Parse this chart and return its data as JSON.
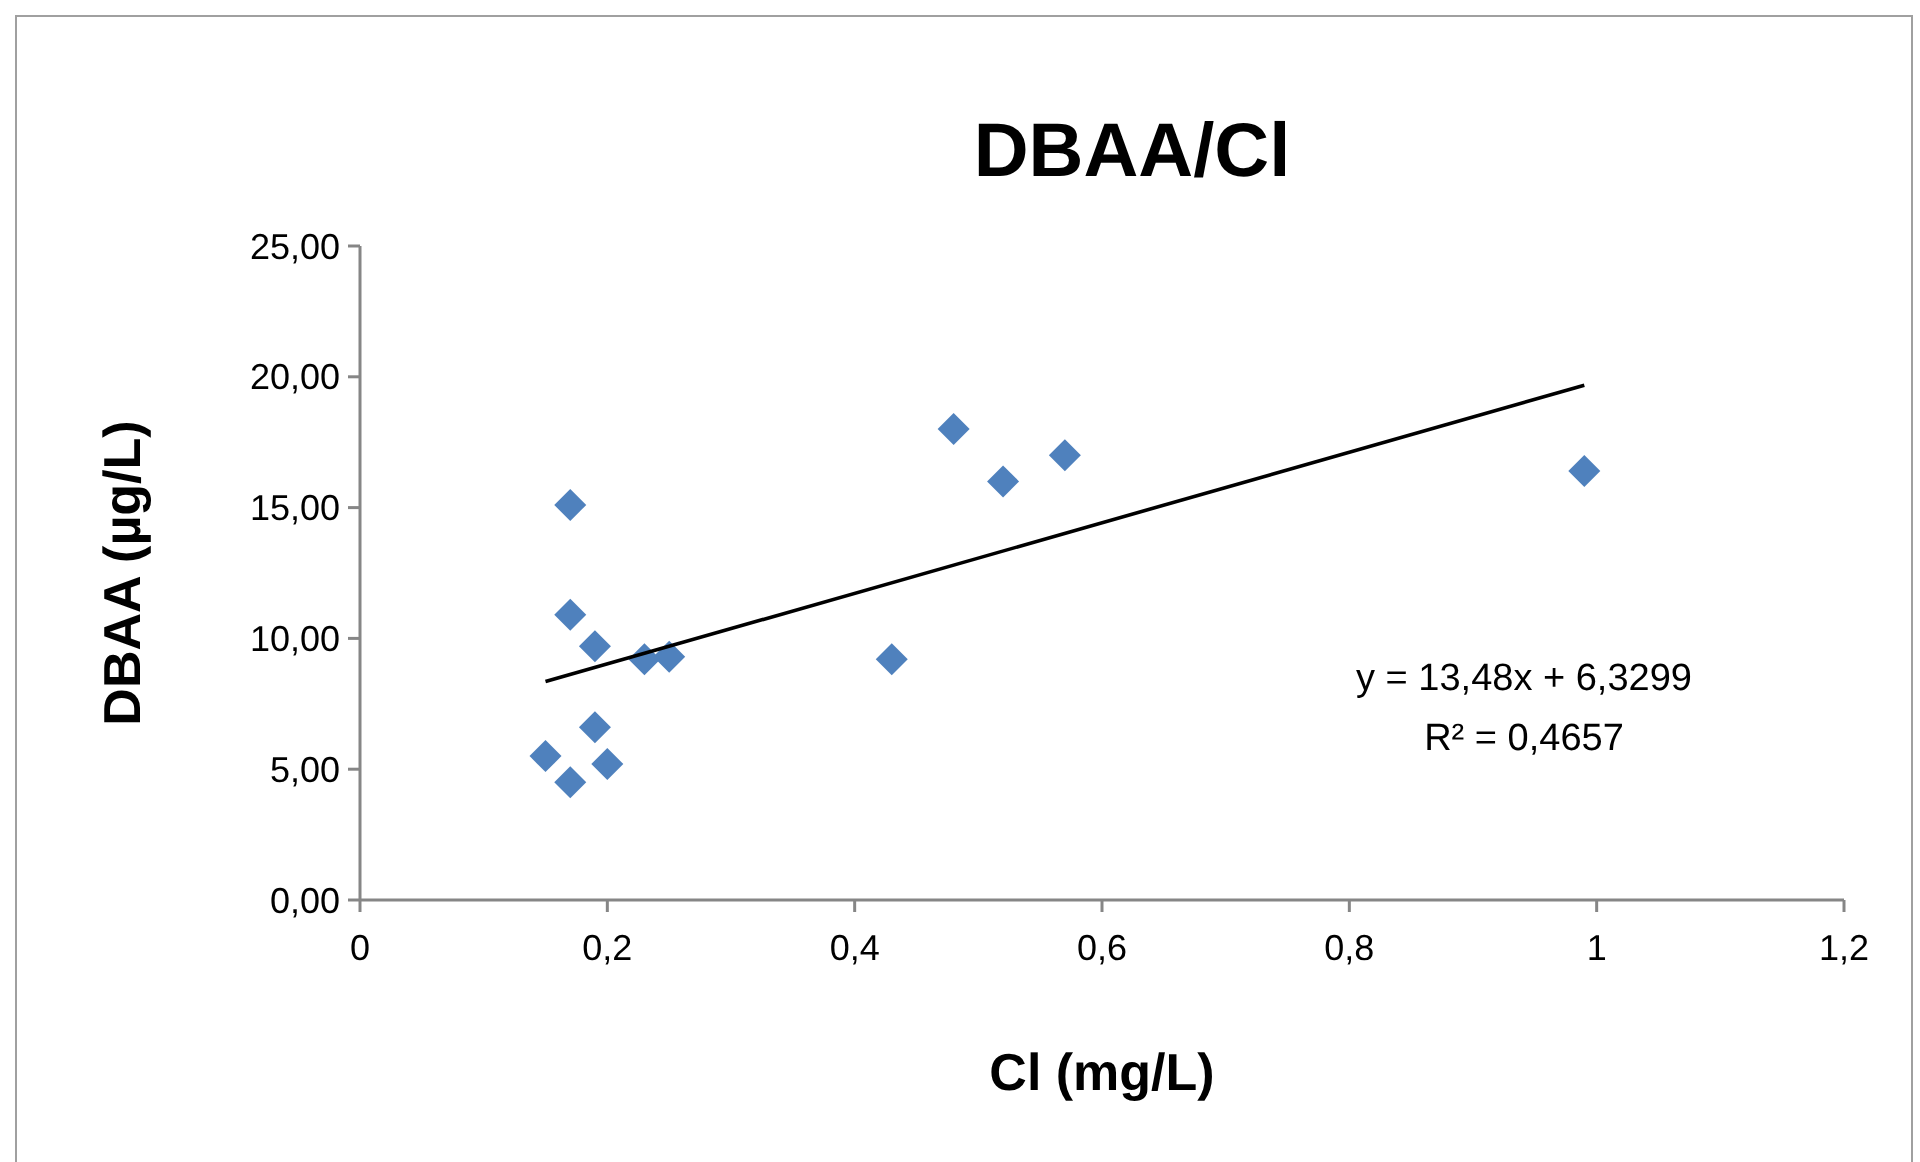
{
  "chart_data": {
    "type": "scatter",
    "title": "DBAA/Cl",
    "xlabel": "Cl (mg/L)",
    "ylabel": "DBAA (µg/L)",
    "grid": false,
    "xlim": [
      0,
      1.2
    ],
    "xticks": [
      0,
      {
        "value": 0.2,
        "label": "0,2"
      },
      {
        "value": 0.4,
        "label": "0,4"
      },
      {
        "value": 0.6,
        "label": "0,6"
      },
      {
        "value": 0.8,
        "label": "0,8"
      },
      1,
      {
        "value": 1.2,
        "label": "1,2"
      }
    ],
    "ylim": [
      0,
      25
    ],
    "yticks": [
      {
        "value": 0,
        "label": "0,00"
      },
      {
        "value": 5,
        "label": "5,00"
      },
      {
        "value": 10,
        "label": "10,00"
      },
      {
        "value": 15,
        "label": "15,00"
      },
      {
        "value": 20,
        "label": "20,00"
      },
      {
        "value": 25,
        "label": "25,00"
      }
    ],
    "series": [
      {
        "marker": "diamond",
        "color": "#4f81bd",
        "x": [
          0.15,
          0.17,
          0.17,
          0.17,
          0.19,
          0.19,
          0.2,
          0.23,
          0.25,
          0.43,
          0.48,
          0.52,
          0.57,
          0.99
        ],
        "values": [
          5.5,
          4.5,
          15.1,
          10.9,
          9.7,
          6.6,
          5.2,
          9.2,
          9.3,
          9.2,
          18.0,
          16.0,
          17.0,
          16.4
        ]
      },
      {
        "type": "line",
        "color": "#000000",
        "x": [
          0.15,
          0.99
        ],
        "values": [
          8.35,
          19.68
        ]
      }
    ],
    "annotations": [
      "y = 13,48x + 6,3299",
      "R² = 0,4657"
    ]
  }
}
